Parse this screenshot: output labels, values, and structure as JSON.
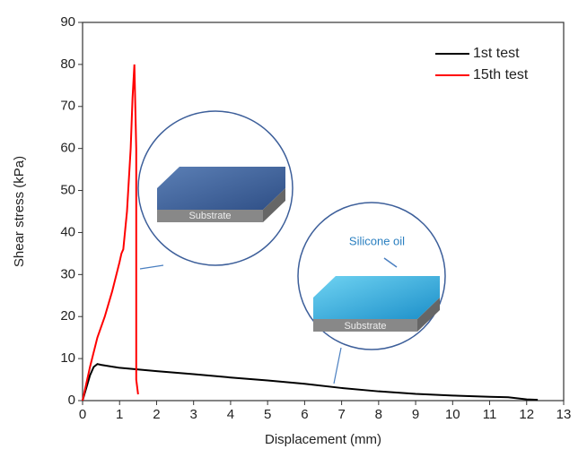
{
  "chart_data": {
    "type": "line",
    "xlabel": "Displacement (mm)",
    "ylabel": "Shear stress (kPa)",
    "xlim": [
      0,
      13
    ],
    "xticks": [
      0,
      1,
      2,
      3,
      4,
      5,
      6,
      7,
      8,
      9,
      10,
      11,
      12,
      13
    ],
    "ylim": [
      0,
      90
    ],
    "yticks": [
      0,
      10,
      20,
      30,
      40,
      50,
      60,
      70,
      80,
      90
    ],
    "legend": "upper right",
    "annotations": [
      "Substrate",
      "Substrate",
      "Silicone oil"
    ],
    "series": [
      {
        "name": "1st test",
        "color": "#000000",
        "x": [
          0,
          0.1,
          0.2,
          0.3,
          0.4,
          0.5,
          1,
          2,
          3,
          4,
          5,
          6,
          7,
          8,
          9,
          10,
          11,
          11.5,
          12,
          12.3
        ],
        "values": [
          0,
          3,
          6,
          8,
          8.7,
          8.5,
          7.8,
          7,
          6.3,
          5.5,
          4.8,
          4,
          3,
          2.2,
          1.6,
          1.2,
          0.9,
          0.8,
          0.3,
          0.2
        ]
      },
      {
        "name": "15th test",
        "color": "#ff0000",
        "x": [
          0,
          0.2,
          0.4,
          0.6,
          0.8,
          1,
          1.05,
          1.1,
          1.2,
          1.3,
          1.35,
          1.4,
          1.45,
          1.45,
          1.45,
          1.5
        ],
        "values": [
          0,
          8,
          15,
          20,
          26,
          33,
          35,
          36,
          45,
          60,
          72,
          80,
          60,
          30,
          5,
          1.5
        ]
      }
    ]
  }
}
